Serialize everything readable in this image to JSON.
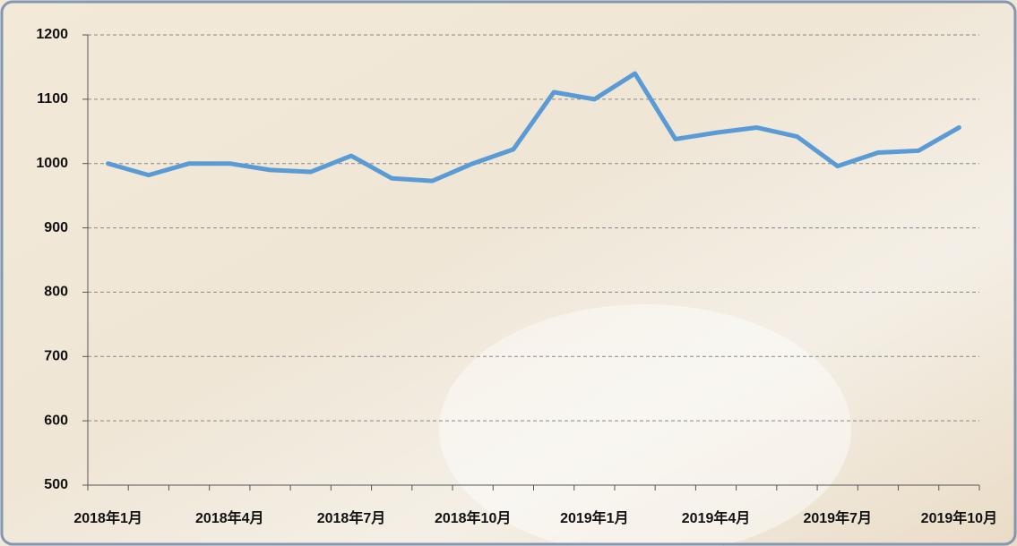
{
  "chart_data": {
    "type": "line",
    "categories": [
      "2018年1月",
      null,
      null,
      "2018年4月",
      null,
      null,
      "2018年7月",
      null,
      null,
      "2018年10月",
      null,
      null,
      "2019年1月",
      null,
      null,
      "2019年4月",
      null,
      null,
      "2019年7月",
      null,
      null,
      "2019年10月"
    ],
    "series": [
      {
        "color": "#5b9bd5",
        "values": [
          1000,
          982,
          1000,
          1000,
          990,
          987,
          1012,
          977,
          973,
          1000,
          1022,
          1111,
          1100,
          1140,
          1038,
          1048,
          1056,
          1042,
          996,
          1017,
          1020,
          1056
        ]
      }
    ],
    "ylim": [
      500,
      1200
    ],
    "yticks": [
      500,
      600,
      700,
      800,
      900,
      1000,
      1100,
      1200
    ],
    "grid": true
  }
}
